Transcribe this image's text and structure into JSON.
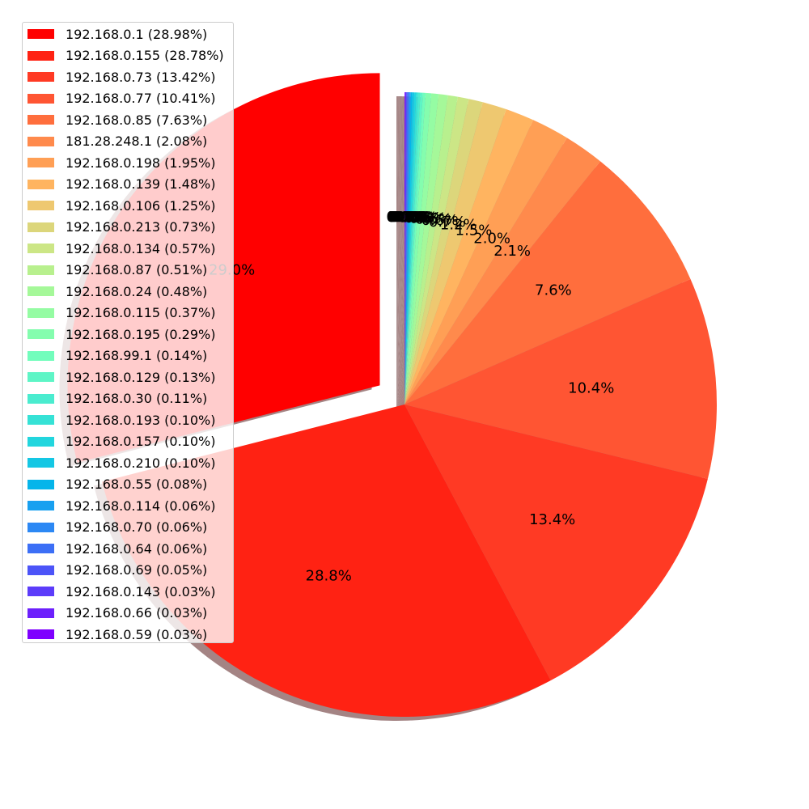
{
  "chart_data": {
    "type": "pie",
    "title": "",
    "exploded": [
      "192.168.0.1"
    ],
    "shadow": true,
    "legend_placement": "upper-left",
    "slices": [
      {
        "label": "192.168.0.1",
        "value": 28.98,
        "legend": "192.168.0.1 (28.98%)",
        "pct": "29.0%",
        "color": "#ff0000"
      },
      {
        "label": "192.168.0.155",
        "value": 28.78,
        "legend": "192.168.0.155 (28.78%)",
        "pct": "28.8%",
        "color": "#ff2213"
      },
      {
        "label": "192.168.0.73",
        "value": 13.42,
        "legend": "192.168.0.73 (13.42%)",
        "pct": "13.4%",
        "color": "#ff3a24"
      },
      {
        "label": "192.168.0.77",
        "value": 10.41,
        "legend": "192.168.0.77 (10.41%)",
        "pct": "10.4%",
        "color": "#ff5533"
      },
      {
        "label": "192.168.0.85",
        "value": 7.63,
        "legend": "192.168.0.85 (7.63%)",
        "pct": "7.6%",
        "color": "#ff6e3d"
      },
      {
        "label": "181.28.248.1",
        "value": 2.08,
        "legend": "181.28.248.1 (2.08%)",
        "pct": "2.1%",
        "color": "#ff8a4c"
      },
      {
        "label": "192.168.0.198",
        "value": 1.95,
        "legend": "192.168.0.198 (1.95%)",
        "pct": "2.0%",
        "color": "#ff9f55"
      },
      {
        "label": "192.168.0.139",
        "value": 1.48,
        "legend": "192.168.0.139 (1.48%)",
        "pct": "1.5%",
        "color": "#ffb460"
      },
      {
        "label": "192.168.0.106",
        "value": 1.25,
        "legend": "192.168.0.106 (1.25%)",
        "pct": "1.2%",
        "color": "#eec870"
      },
      {
        "label": "192.168.0.213",
        "value": 0.73,
        "legend": "192.168.0.213 (0.73%)",
        "pct": "0.7%",
        "color": "#dcd67b"
      },
      {
        "label": "192.168.0.134",
        "value": 0.57,
        "legend": "192.168.0.134 (0.57%)",
        "pct": "0.6%",
        "color": "#cce686"
      },
      {
        "label": "192.168.0.87",
        "value": 0.51,
        "legend": "192.168.0.87 (0.51%)",
        "pct": "0.5%",
        "color": "#b8f08e"
      },
      {
        "label": "192.168.0.24",
        "value": 0.48,
        "legend": "192.168.0.24 (0.48%)",
        "pct": "0.5%",
        "color": "#a5f899"
      },
      {
        "label": "192.168.0.115",
        "value": 0.37,
        "legend": "192.168.0.115 (0.37%)",
        "pct": "0.4%",
        "color": "#95fca3"
      },
      {
        "label": "192.168.0.195",
        "value": 0.29,
        "legend": "192.168.0.195 (0.29%)",
        "pct": "0.3%",
        "color": "#84fdae"
      },
      {
        "label": "192.168.99.1",
        "value": 0.14,
        "legend": "192.168.99.1 (0.14%)",
        "pct": "0.1%",
        "color": "#72fdbc"
      },
      {
        "label": "192.168.0.129",
        "value": 0.13,
        "legend": "192.168.0.129 (0.13%)",
        "pct": "0.1%",
        "color": "#5ef5c6"
      },
      {
        "label": "192.168.0.30",
        "value": 0.11,
        "legend": "192.168.0.30 (0.11%)",
        "pct": "0.1%",
        "color": "#4aeccf"
      },
      {
        "label": "192.168.0.193",
        "value": 0.1,
        "legend": "192.168.0.193 (0.10%)",
        "pct": "0.1%",
        "color": "#36e2d6"
      },
      {
        "label": "192.168.0.157",
        "value": 0.1,
        "legend": "192.168.0.157 (0.10%)",
        "pct": "0.1%",
        "color": "#22d6de"
      },
      {
        "label": "192.168.0.210",
        "value": 0.1,
        "legend": "192.168.0.210 (0.10%)",
        "pct": "0.1%",
        "color": "#14c7e4"
      },
      {
        "label": "192.168.0.55",
        "value": 0.08,
        "legend": "192.168.0.55 (0.08%)",
        "pct": "0.1%",
        "color": "#05b5ea"
      },
      {
        "label": "192.168.0.114",
        "value": 0.06,
        "legend": "192.168.0.114 (0.06%)",
        "pct": "0.1%",
        "color": "#18a0f0"
      },
      {
        "label": "192.168.0.70",
        "value": 0.06,
        "legend": "192.168.0.70 (0.06%)",
        "pct": "0.1%",
        "color": "#2c88f4"
      },
      {
        "label": "192.168.0.64",
        "value": 0.06,
        "legend": "192.168.0.64 (0.06%)",
        "pct": "0.1%",
        "color": "#3c6ff6"
      },
      {
        "label": "192.168.0.69",
        "value": 0.05,
        "legend": "192.168.0.69 (0.05%)",
        "pct": "0.1%",
        "color": "#4c54f8"
      },
      {
        "label": "192.168.0.143",
        "value": 0.03,
        "legend": "192.168.0.143 (0.03%)",
        "pct": "0.0%",
        "color": "#5c3cfa"
      },
      {
        "label": "192.168.0.66",
        "value": 0.03,
        "legend": "192.168.0.66 (0.03%)",
        "pct": "0.0%",
        "color": "#6c20fc"
      },
      {
        "label": "192.168.0.59",
        "value": 0.03,
        "legend": "192.168.0.59 (0.03%)",
        "pct": "0.0%",
        "color": "#7f00ff"
      }
    ]
  }
}
